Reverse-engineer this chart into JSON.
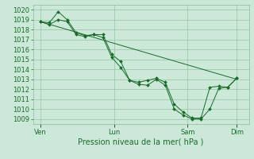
{
  "title": "",
  "xlabel": "Pression niveau de la mer( hPa )",
  "bg_color": "#cce8d8",
  "grid_color": "#88bb99",
  "line_color": "#1a6b2a",
  "ylim": [
    1008.5,
    1020.5
  ],
  "yticks": [
    1009,
    1010,
    1011,
    1012,
    1013,
    1014,
    1015,
    1016,
    1017,
    1018,
    1019,
    1020
  ],
  "xtick_labels": [
    "Ven",
    "Lun",
    "Sam",
    "Dim"
  ],
  "xtick_positions": [
    0.0,
    3.0,
    6.0,
    8.0
  ],
  "line1": [
    1018.8,
    1018.5,
    1019.0,
    1018.8,
    1017.5,
    1017.3,
    1017.5,
    1017.5,
    1015.5,
    1014.8,
    1012.9,
    1012.7,
    1012.9,
    1013.1,
    1012.7,
    1010.5,
    1009.7,
    1009.1,
    1009.1,
    1012.2,
    1012.3,
    1012.2,
    1013.1
  ],
  "line2": [
    1018.8,
    1018.7,
    1019.8,
    1019.0,
    1017.7,
    1017.4,
    1017.5,
    1017.2,
    1015.2,
    1014.2,
    1012.9,
    1012.5,
    1012.4,
    1013.0,
    1012.4,
    1010.0,
    1009.4,
    1009.0,
    1009.0,
    1010.0,
    1012.1,
    1012.2,
    1013.1
  ],
  "line3_x": [
    0.0,
    8.0
  ],
  "line3_y": [
    1018.8,
    1013.0
  ],
  "figsize": [
    3.2,
    2.0
  ],
  "dpi": 100,
  "label_fontsize": 7,
  "tick_fontsize": 6
}
